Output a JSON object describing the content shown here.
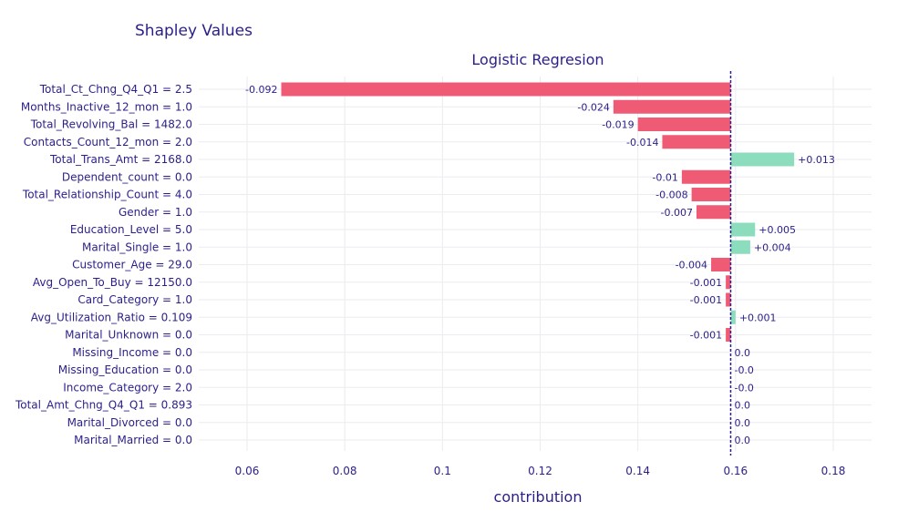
{
  "chart_data": {
    "type": "bar",
    "orientation": "horizontal",
    "title": "Shapley Values",
    "subtitle": "Logistic Regresion",
    "xlabel": "contribution",
    "xlim": [
      0.05,
      0.187
    ],
    "xticks": [
      0.06,
      0.08,
      0.1,
      0.12,
      0.14,
      0.16,
      0.18
    ],
    "xtick_labels": [
      "0.06",
      "0.08",
      "0.1",
      "0.12",
      "0.14",
      "0.16",
      "0.18"
    ],
    "baseline": 0.159,
    "grid": true,
    "colors": {
      "positive": "#8cdcbe",
      "negative": "#ef5a74",
      "text": "#2a1f8a"
    },
    "categories": [
      "Total_Ct_Chng_Q4_Q1 = 2.5",
      "Months_Inactive_12_mon = 1.0",
      "Total_Revolving_Bal = 1482.0",
      "Contacts_Count_12_mon = 2.0",
      "Total_Trans_Amt = 2168.0",
      "Dependent_count = 0.0",
      "Total_Relationship_Count = 4.0",
      "Gender = 1.0",
      "Education_Level = 5.0",
      "Marital_Single = 1.0",
      "Customer_Age = 29.0",
      "Avg_Open_To_Buy = 12150.0",
      "Card_Category = 1.0",
      "Avg_Utilization_Ratio = 0.109",
      "Marital_Unknown = 0.0",
      "Missing_Income = 0.0",
      "Missing_Education = 0.0",
      "Income_Category = 2.0",
      "Total_Amt_Chng_Q4_Q1 = 0.893",
      "Marital_Divorced = 0.0",
      "Marital_Married = 0.0"
    ],
    "values": [
      -0.092,
      -0.024,
      -0.019,
      -0.014,
      0.013,
      -0.01,
      -0.008,
      -0.007,
      0.005,
      0.004,
      -0.004,
      -0.001,
      -0.001,
      0.001,
      -0.001,
      0.0,
      -0.0,
      -0.0,
      0.0,
      0.0,
      0.0
    ],
    "labels": [
      "-0.092",
      "-0.024",
      "-0.019",
      "-0.014",
      "+0.013",
      "-0.01",
      "-0.008",
      "-0.007",
      "+0.005",
      "+0.004",
      "-0.004",
      "-0.001",
      "-0.001",
      "+0.001",
      "-0.001",
      "0.0",
      "-0.0",
      "-0.0",
      "0.0",
      "0.0",
      "0.0"
    ]
  }
}
